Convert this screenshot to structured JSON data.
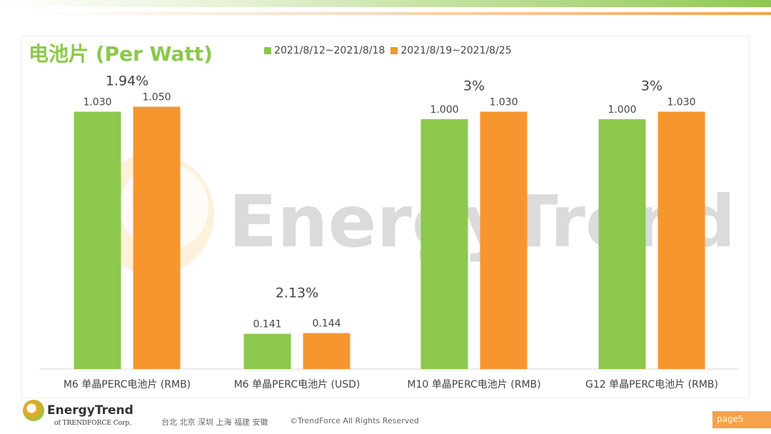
{
  "header": {
    "title": "电池片 (Per Watt)"
  },
  "watermark": "EnergyTrend",
  "chart_data": {
    "type": "bar",
    "title": "电池片 (Per Watt)",
    "categories": [
      "M6 单晶PERC电池片 (RMB)",
      "M6 单晶PERC电池片 (USD)",
      "M10 单晶PERC电池片 (RMB)",
      "G12 单晶PERC电池片 (RMB)"
    ],
    "series": [
      {
        "name": "2021/8/12~2021/8/18",
        "color": "#8cc84b",
        "values": [
          1.03,
          0.141,
          1.0,
          1.0
        ],
        "labels": [
          "1.030",
          "0.141",
          "1.000",
          "1.000"
        ]
      },
      {
        "name": "2021/8/19~2021/8/25",
        "color": "#f7962f",
        "values": [
          1.05,
          0.144,
          1.03,
          1.03
        ],
        "labels": [
          "1.050",
          "0.144",
          "1.030",
          "1.030"
        ]
      }
    ],
    "annotations": [
      "1.94%",
      "2.13%",
      "3%",
      "3%"
    ],
    "ylim": [
      0,
      1.2
    ],
    "grid": false,
    "legend": "top"
  },
  "footer": {
    "brand": "EnergyTrend",
    "sub": "of TRENDFORCE Corp.",
    "cities": "台北 北京 深圳 上海 福建 安徽",
    "copyright": "©TrendForce All Rights Reserved",
    "page": "page5"
  }
}
